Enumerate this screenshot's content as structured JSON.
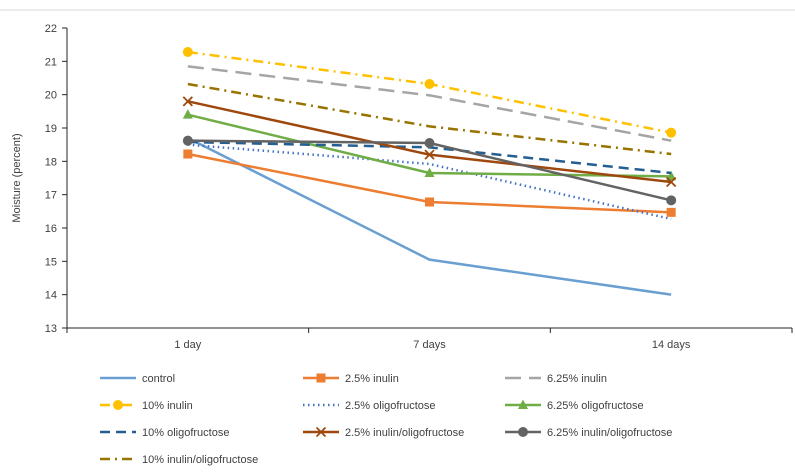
{
  "chart_data": {
    "type": "line",
    "title": "",
    "xlabel": "",
    "ylabel": "Moisture (percent)",
    "categories": [
      "1 day",
      "7 days",
      "14 days"
    ],
    "ylim": [
      13,
      22
    ],
    "yticks": [
      13,
      14,
      15,
      16,
      17,
      18,
      19,
      20,
      21,
      22
    ],
    "grid": false,
    "legend_position": "bottom",
    "series": [
      {
        "name": "control",
        "values": [
          18.7,
          15.05,
          14.0
        ],
        "color": "#6A9FD2",
        "dash": "solid",
        "marker": "none"
      },
      {
        "name": "2.5% inulin",
        "values": [
          18.22,
          16.78,
          16.47
        ],
        "color": "#ED7D31",
        "dash": "solid",
        "marker": "square"
      },
      {
        "name": "6.25% inulin",
        "values": [
          20.85,
          19.98,
          18.62
        ],
        "color": "#A5A5A5",
        "dash": "longdash",
        "marker": "none"
      },
      {
        "name": "10% inulin",
        "values": [
          21.28,
          20.32,
          18.86
        ],
        "color": "#FFC000",
        "dash": "dashdot",
        "marker": "circle"
      },
      {
        "name": "2.5% oligofructose",
        "values": [
          18.5,
          17.92,
          16.27
        ],
        "color": "#4472C4",
        "dash": "dot",
        "marker": "none"
      },
      {
        "name": "6.25% oligofructose",
        "values": [
          19.4,
          17.65,
          17.55
        ],
        "color": "#70AD47",
        "dash": "solid",
        "marker": "triangle"
      },
      {
        "name": "10% oligofructose",
        "values": [
          18.58,
          18.42,
          17.65
        ],
        "color": "#255E91",
        "dash": "dash",
        "marker": "none"
      },
      {
        "name": "2.5% inulin/oligofructose",
        "values": [
          19.8,
          18.2,
          17.38
        ],
        "color": "#9E480E",
        "dash": "solid",
        "marker": "x"
      },
      {
        "name": "6.25% inulin/oligofructose",
        "values": [
          18.62,
          18.55,
          16.83
        ],
        "color": "#636363",
        "dash": "solid",
        "marker": "circle"
      },
      {
        "name": "10% inulin/oligofructose",
        "values": [
          20.32,
          19.05,
          18.22
        ],
        "color": "#997300",
        "dash": "dashdot",
        "marker": "none"
      }
    ]
  }
}
